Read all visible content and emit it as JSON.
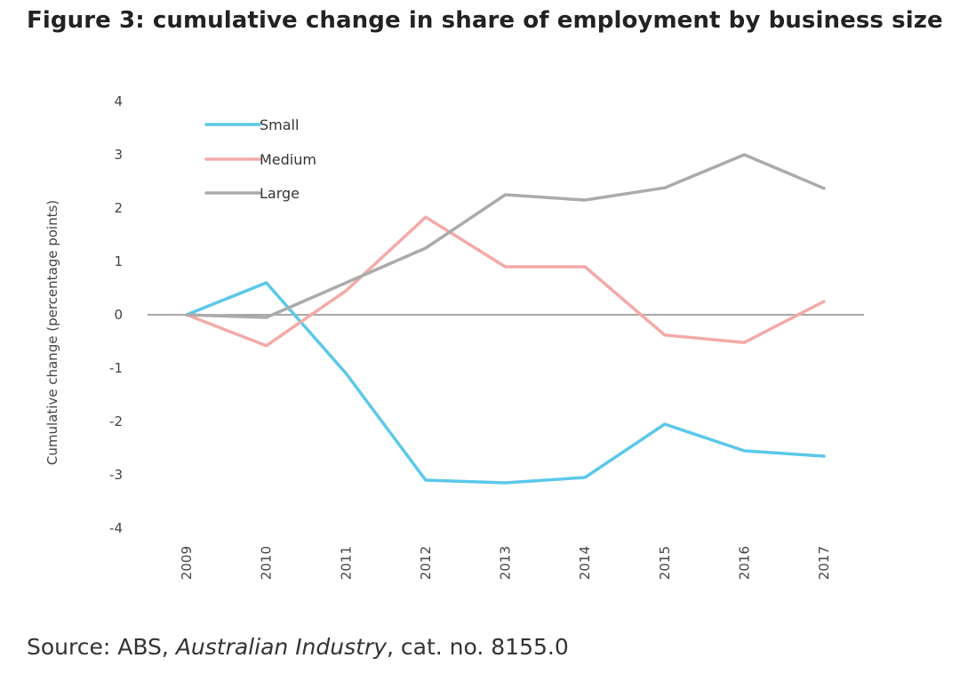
{
  "figure": {
    "title": "Figure 3: cumulative change in share of employment by business size",
    "source_prefix": "Source: ABS, ",
    "source_italic": "Australian Industry",
    "source_suffix": ", cat. no. 8155.0"
  },
  "chart_data": {
    "type": "line",
    "title": "Figure 3: cumulative change in share of employment by business size",
    "xlabel": "",
    "ylabel": "Cumulative change (percentage points)",
    "x": [
      "2009",
      "2010",
      "2011",
      "2012",
      "2013",
      "2014",
      "2015",
      "2016",
      "2017"
    ],
    "ylim": [
      -4,
      4
    ],
    "yticks": [
      4,
      3,
      2,
      1,
      0,
      -1,
      -2,
      -3,
      -4
    ],
    "grid": false,
    "zero_line": true,
    "legend_position": "top-left",
    "series": [
      {
        "name": "Small",
        "color": "#5bc8ea",
        "values": [
          0,
          0.6,
          -1.1,
          -3.1,
          -3.15,
          -3.05,
          -2.05,
          -2.55,
          -2.65
        ]
      },
      {
        "name": "Medium",
        "color": "#f3aaa7",
        "values": [
          0,
          -0.58,
          0.45,
          1.83,
          0.9,
          0.9,
          -0.38,
          -0.52,
          0.25
        ]
      },
      {
        "name": "Large",
        "color": "#ababab",
        "values": [
          0,
          -0.05,
          0.6,
          1.25,
          2.25,
          2.15,
          2.38,
          3.0,
          2.37
        ]
      }
    ]
  }
}
